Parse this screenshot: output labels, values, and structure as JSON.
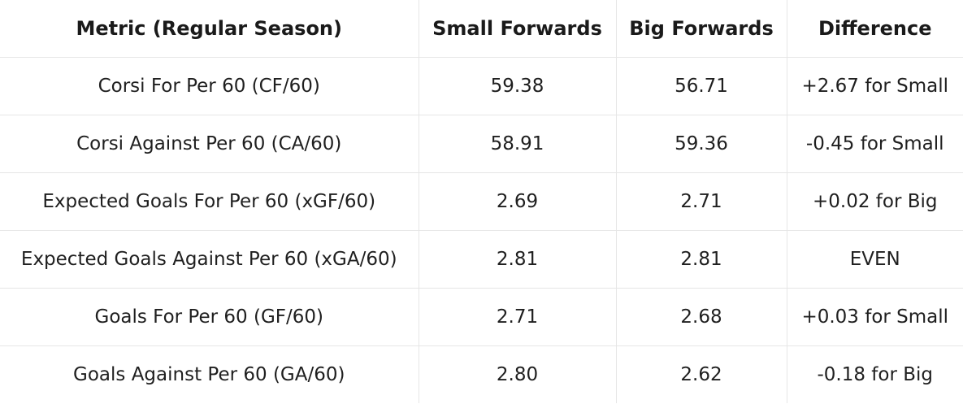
{
  "chart_data": {
    "type": "table",
    "columns": [
      "Metric (Regular Season)",
      "Small Forwards",
      "Big Forwards",
      "Difference"
    ],
    "rows": [
      [
        "Corsi For Per 60 (CF/60)",
        "59.38",
        "56.71",
        "+2.67 for Small"
      ],
      [
        "Corsi Against Per 60 (CA/60)",
        "58.91",
        "59.36",
        "-0.45 for Small"
      ],
      [
        "Expected Goals For Per 60 (xGF/60)",
        "2.69",
        "2.71",
        "+0.02 for Big"
      ],
      [
        "Expected Goals Against Per 60 (xGA/60)",
        "2.81",
        "2.81",
        "EVEN"
      ],
      [
        "Goals For Per 60 (GF/60)",
        "2.71",
        "2.68",
        "+0.03 for Small"
      ],
      [
        "Goals Against Per 60 (GA/60)",
        "2.80",
        "2.62",
        "-0.18 for Big"
      ]
    ]
  }
}
